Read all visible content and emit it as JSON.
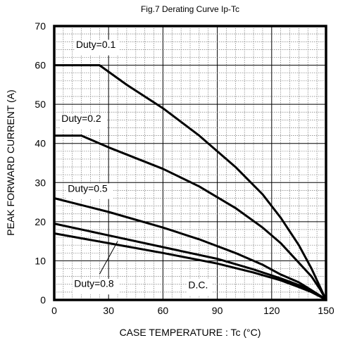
{
  "chart_data": {
    "type": "line",
    "title": "Fig.7 Derating Curve Ip-Tc",
    "xlabel": "CASE  TEMPERATURE : Tc (°C)",
    "ylabel": "PEAK  FORWARD  CURRENT  (A)",
    "xlim": [
      0,
      150
    ],
    "ylim": [
      0,
      70
    ],
    "xticks": [
      0,
      30,
      60,
      90,
      120,
      150
    ],
    "yticks": [
      0,
      10,
      20,
      30,
      40,
      50,
      60,
      70
    ],
    "grid": true,
    "series": [
      {
        "name": "Duty=0.1",
        "x": [
          0,
          25,
          40,
          60,
          80,
          100,
          115,
          125,
          135,
          142,
          147,
          150
        ],
        "y": [
          60,
          60,
          55,
          49,
          42,
          34,
          27,
          21,
          14,
          8,
          3,
          0
        ]
      },
      {
        "name": "Duty=0.2",
        "x": [
          0,
          15,
          30,
          60,
          80,
          100,
          115,
          125,
          135,
          142,
          147,
          150
        ],
        "y": [
          42,
          42,
          39,
          33.5,
          29,
          23.5,
          18.5,
          14.5,
          9.5,
          6,
          2.5,
          0
        ]
      },
      {
        "name": "Duty=0.5",
        "x": [
          0,
          30,
          60,
          80,
          100,
          115,
          125,
          135,
          142,
          147,
          150
        ],
        "y": [
          26,
          22.5,
          18.5,
          15.5,
          12,
          9,
          6.5,
          4.5,
          2.5,
          1,
          0
        ]
      },
      {
        "name": "Duty=0.8",
        "x": [
          0,
          30,
          60,
          90,
          110,
          125,
          135,
          142,
          147,
          150
        ],
        "y": [
          19.5,
          16.5,
          13.5,
          10.5,
          7.8,
          5.5,
          3.8,
          2.3,
          1,
          0
        ]
      },
      {
        "name": "D.C.",
        "x": [
          0,
          30,
          60,
          90,
          110,
          125,
          135,
          142,
          147,
          150
        ],
        "y": [
          17,
          14.5,
          12,
          9.3,
          7,
          5,
          3.3,
          2,
          0.8,
          0
        ]
      }
    ]
  }
}
